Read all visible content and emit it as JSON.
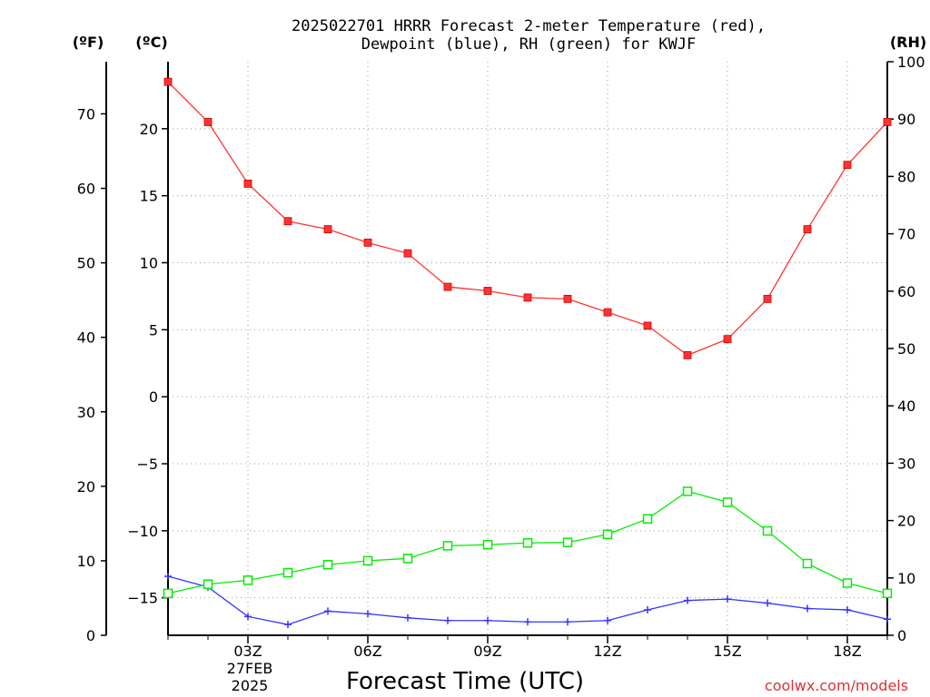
{
  "chart_data": {
    "type": "line",
    "title_lines": [
      "2025022701 HRRR Forecast 2-meter Temperature (red),",
      "Dewpoint (blue), RH (green) for KWJF"
    ],
    "xlabel": "Forecast Time (UTC)",
    "date_label": [
      "27FEB",
      "2025"
    ],
    "credit": "coolwx.com/models",
    "x_tick_labels": [
      "03Z",
      "06Z",
      "09Z",
      "12Z",
      "15Z",
      "18Z"
    ],
    "x_tick_hours": [
      3,
      6,
      9,
      12,
      15,
      18
    ],
    "xlim": [
      1,
      19
    ],
    "left_axis_f": {
      "unit": "(ºF)",
      "ticks": [
        0,
        10,
        20,
        30,
        40,
        50,
        60,
        70
      ],
      "lim": [
        0,
        77
      ]
    },
    "left_axis_c": {
      "unit": "(ºC)",
      "ticks": [
        20,
        15,
        10,
        5,
        0,
        -5,
        -10,
        -15
      ],
      "tick_labels": [
        "20",
        "15",
        "10",
        "5",
        "0",
        "−5",
        "−10",
        "−15"
      ],
      "lim": [
        -17.8,
        25
      ]
    },
    "right_axis_rh": {
      "unit": "(RH)",
      "ticks": [
        0,
        10,
        20,
        30,
        40,
        50,
        60,
        70,
        80,
        90,
        100
      ],
      "lim": [
        0,
        100
      ]
    },
    "grid": true,
    "series": [
      {
        "axis": "celsius",
        "color": "#ff3333",
        "marker": "filled-square",
        "x": [
          1,
          2,
          3,
          4,
          5,
          6,
          7,
          8,
          9,
          10,
          11,
          12,
          13,
          14,
          15,
          16,
          17,
          18,
          19
        ],
        "values": [
          23.5,
          20.5,
          15.9,
          13.1,
          12.5,
          11.5,
          10.7,
          8.2,
          7.9,
          7.4,
          7.3,
          6.3,
          5.3,
          3.1,
          4.3,
          7.3,
          12.5,
          17.3,
          20.5
        ]
      },
      {
        "axis": "celsius",
        "color": "#3333ff",
        "marker": "plus",
        "x": [
          1,
          2,
          3,
          4,
          5,
          6,
          7,
          8,
          9,
          10,
          11,
          12,
          13,
          14,
          15,
          16,
          17,
          18,
          19
        ],
        "values": [
          -13.4,
          -14.2,
          -16.4,
          -17.0,
          -16.0,
          -16.2,
          -16.5,
          -16.7,
          -16.7,
          -16.8,
          -16.8,
          -16.7,
          -15.9,
          -15.2,
          -15.1,
          -15.4,
          -15.8,
          -15.9,
          -16.6
        ]
      },
      {
        "axis": "rh",
        "color": "#00ee00",
        "marker": "open-square",
        "x": [
          1,
          2,
          3,
          4,
          5,
          6,
          7,
          8,
          9,
          10,
          11,
          12,
          13,
          14,
          15,
          16,
          17,
          18,
          19
        ],
        "values": [
          7.3,
          8.9,
          9.6,
          10.9,
          12.3,
          13.0,
          13.4,
          15.6,
          15.8,
          16.1,
          16.2,
          17.6,
          20.3,
          25.1,
          23.2,
          18.2,
          12.5,
          9.1,
          7.3
        ]
      }
    ]
  }
}
